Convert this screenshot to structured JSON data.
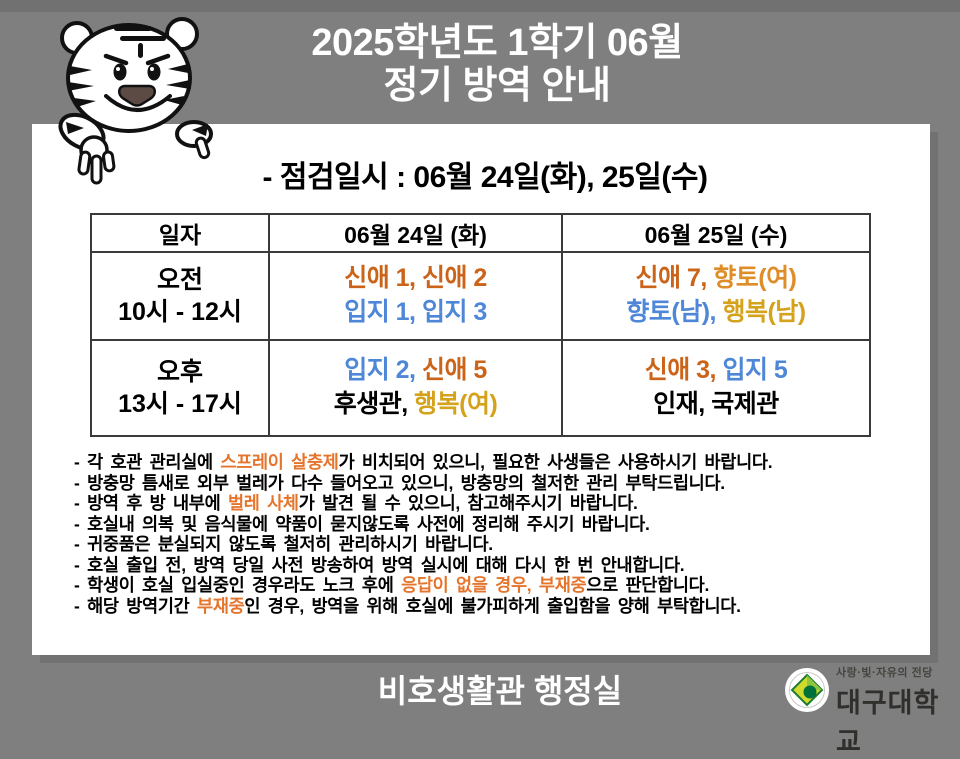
{
  "page": {
    "background_color": "#7F7F7F",
    "panel_color": "#FFFFFF",
    "title_line1": "2025학년도 1학기 06월",
    "title_line2": "정기 방역 안내",
    "subtitle": "- 점검일시 :  06월 24일(화), 25일(수)",
    "footer": "비호생활관 행정실"
  },
  "colors": {
    "orange": "#CB6318",
    "amber": "#DF8D28",
    "blue": "#4E86D8",
    "gold": "#D5A21C",
    "note_highlight": "#E5752C",
    "table_border": "#3A3A3A"
  },
  "table": {
    "headers": [
      "일자",
      "06월 24일 (화)",
      "06월 25일 (수)"
    ],
    "rows": [
      {
        "label_line1": "오전",
        "label_line2": "10시 - 12시",
        "cells": [
          {
            "line1": [
              {
                "t": "신애 1, 신애 2",
                "c": "#CB6318"
              }
            ],
            "line2": [
              {
                "t": "입지 1, 입지 3",
                "c": "#4E86D8"
              }
            ]
          },
          {
            "line1": [
              {
                "t": "신애 7,",
                "c": "#CB6318"
              },
              {
                "t": " 향토(여)",
                "c": "#DF8D28"
              }
            ],
            "line2": [
              {
                "t": "향토(남),",
                "c": "#4E86D8"
              },
              {
                "t": " 행복(남)",
                "c": "#D5A21C"
              }
            ]
          }
        ]
      },
      {
        "label_line1": "오후",
        "label_line2": "13시 - 17시",
        "cells": [
          {
            "line1": [
              {
                "t": "입지 2,",
                "c": "#4E86D8"
              },
              {
                "t": " 신애 5",
                "c": "#CB6318"
              }
            ],
            "line2": [
              {
                "t": "후생관,"
              },
              {
                "t": " 행복(여)",
                "c": "#D5A21C"
              }
            ]
          },
          {
            "line1": [
              {
                "t": "신애 3,",
                "c": "#CB6318"
              },
              {
                "t": " 입지 5",
                "c": "#4E86D8"
              }
            ],
            "line2": [
              {
                "t": "인재, 국제관"
              }
            ]
          }
        ]
      }
    ]
  },
  "notes": [
    [
      {
        "t": "- 각 호관 관리실에 "
      },
      {
        "t": "스프레이 살충제",
        "c": "#E5752C"
      },
      {
        "t": "가 비치되어 있으니, 필요한 사생들은 사용하시기 바랍니다."
      }
    ],
    [
      {
        "t": "- 방충망 틈새로 외부 벌레가 다수 들어오고 있으니, 방충망의 철저한 관리 부탁드립니다."
      }
    ],
    [
      {
        "t": "- 방역 후 방 내부에 "
      },
      {
        "t": "벌레 사체",
        "c": "#E5752C"
      },
      {
        "t": "가 발견 될 수 있으니, 참고해주시기 바랍니다."
      }
    ],
    [
      {
        "t": "- 호실내 의복 및 음식물에 약품이 묻지않도록 사전에 정리해 주시기 바랍니다."
      }
    ],
    [
      {
        "t": "- 귀중품은 분실되지 않도록 철저히 관리하시기 바랍니다."
      }
    ],
    [
      {
        "t": "- 호실 출입 전, 방역 당일 사전 방송하여 방역 실시에 대해 다시 한 번 안내합니다."
      }
    ],
    [
      {
        "t": "- 학생이 호실 입실중인 경우라도 노크 후에 "
      },
      {
        "t": "응답이 없을 경우, 부재중",
        "c": "#E5752C"
      },
      {
        "t": "으로 판단합니다."
      }
    ],
    [
      {
        "t": "- 해당 방역기간 "
      },
      {
        "t": "부재중",
        "c": "#E5752C"
      },
      {
        "t": "인 경우, 방역을 위해 호실에 불가피하게 출입함을 양해 부탁합니다."
      }
    ]
  ],
  "logo": {
    "slogan": "사랑·빛·자유의 전당",
    "university": "대구대학교"
  }
}
